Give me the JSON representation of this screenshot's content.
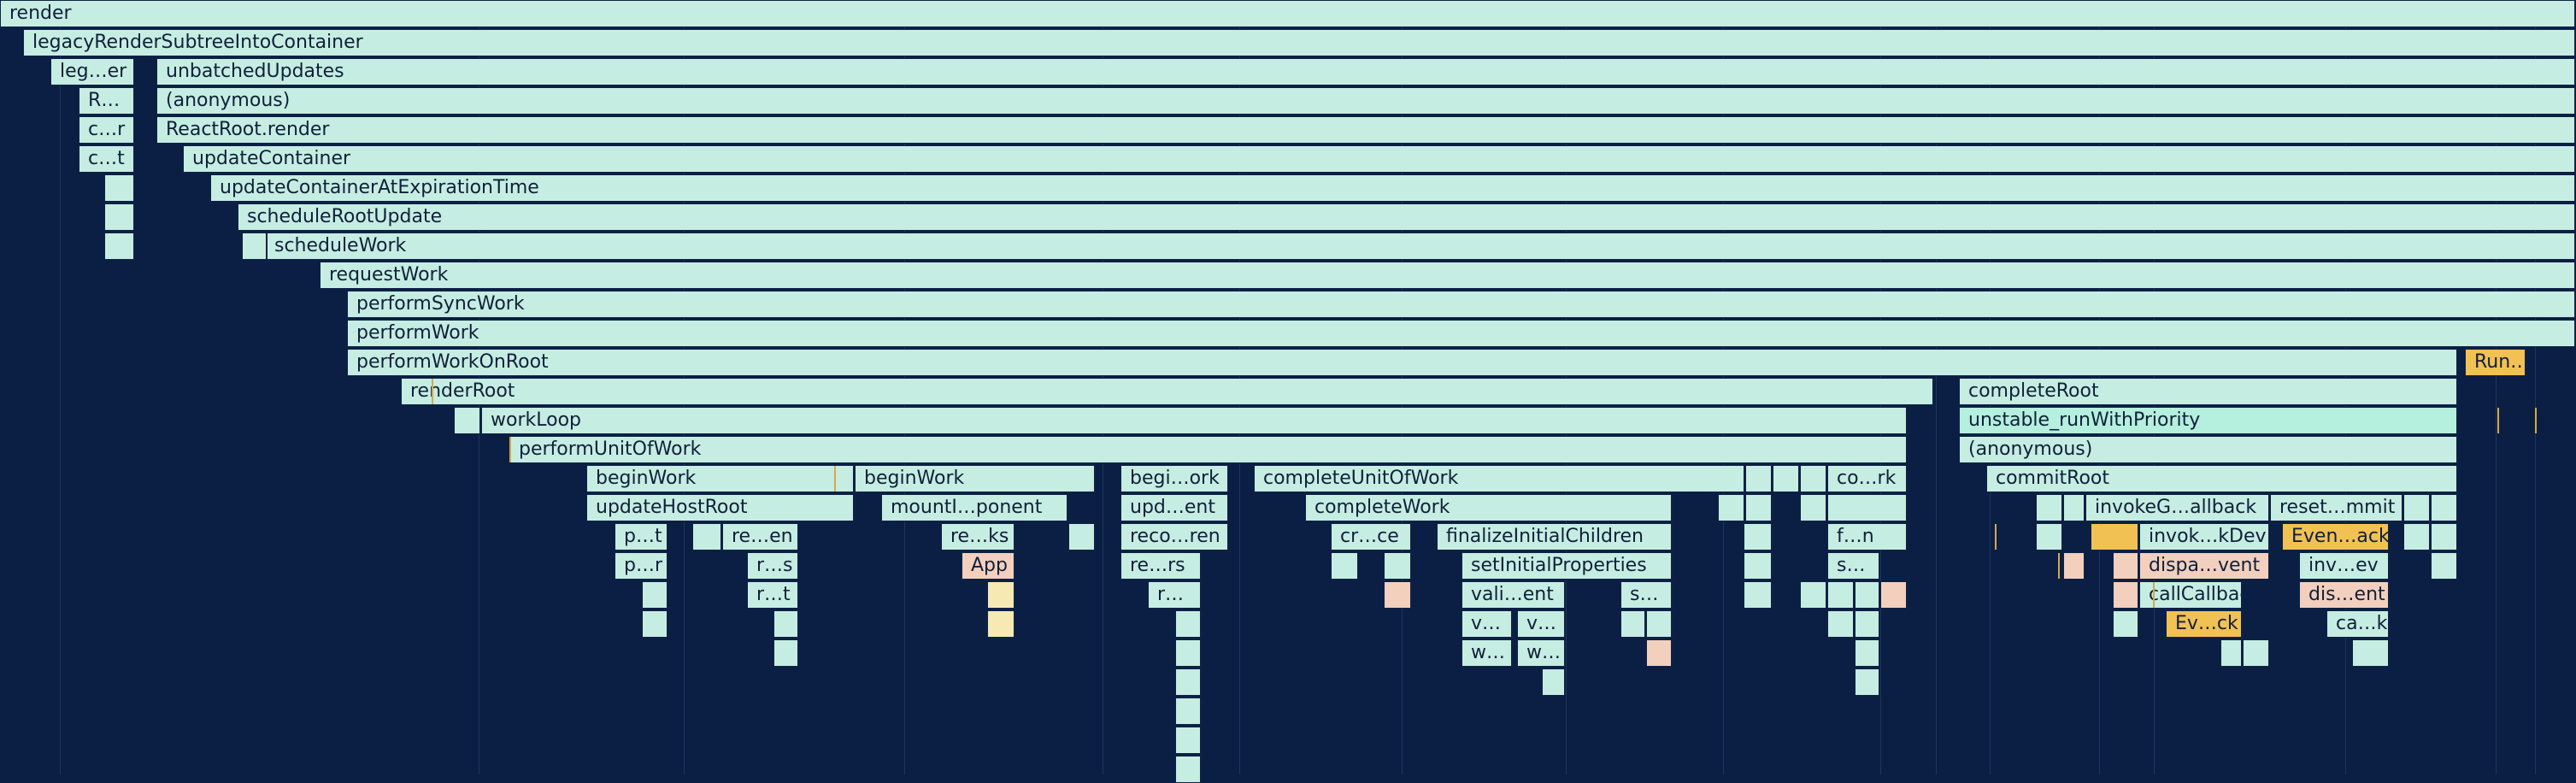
{
  "flame": {
    "frames": [
      {
        "label": "render",
        "color": "#c6ede2"
      },
      {
        "label": "legacyRenderSubtreeIntoContainer",
        "color": "#c6ede2"
      },
      {
        "label": "leg…er",
        "color": "#c6ede2"
      },
      {
        "label": "unbatchedUpdates",
        "color": "#c6ede2"
      },
      {
        "label": "R…",
        "color": "#c6ede2"
      },
      {
        "label": "(anonymous)",
        "color": "#c6ede2"
      },
      {
        "label": "c…r",
        "color": "#c6ede2"
      },
      {
        "label": "ReactRoot.render",
        "color": "#c6ede2"
      },
      {
        "label": "c…t",
        "color": "#c6ede2"
      },
      {
        "label": "updateContainer",
        "color": "#c6ede2"
      },
      {
        "label": "updateContainerAtExpirationTime",
        "color": "#c6ede2"
      },
      {
        "label": "scheduleRootUpdate",
        "color": "#c6ede2"
      },
      {
        "label": "scheduleWork",
        "color": "#c6ede2"
      },
      {
        "label": "requestWork",
        "color": "#c6ede2"
      },
      {
        "label": "performSyncWork",
        "color": "#c6ede2"
      },
      {
        "label": "performWork",
        "color": "#c6ede2"
      },
      {
        "label": "performWorkOnRoot",
        "color": "#c6ede2"
      },
      {
        "label": "Run…sks",
        "color": "#f2c154"
      },
      {
        "label": "renderRoot",
        "color": "#c6ede2"
      },
      {
        "label": "completeRoot",
        "color": "#c6ede2"
      },
      {
        "label": "workLoop",
        "color": "#c6ede2"
      },
      {
        "label": "unstable_runWithPriority",
        "color": "#b4f0dd"
      },
      {
        "label": "performUnitOfWork",
        "color": "#c6ede2"
      },
      {
        "label": "(anonymous)",
        "color": "#c6ede2"
      },
      {
        "label": "beginWork",
        "color": "#c6ede2"
      },
      {
        "label": "beginWork",
        "color": "#c6ede2"
      },
      {
        "label": "begi…ork",
        "color": "#c6ede2"
      },
      {
        "label": "completeUnitOfWork",
        "color": "#c6ede2"
      },
      {
        "label": "co…rk",
        "color": "#c6ede2"
      },
      {
        "label": "commitRoot",
        "color": "#c6ede2"
      },
      {
        "label": "updateHostRoot",
        "color": "#c6ede2"
      },
      {
        "label": "mountI…ponent",
        "color": "#c6ede2"
      },
      {
        "label": "upd…ent",
        "color": "#c6ede2"
      },
      {
        "label": "completeWork",
        "color": "#c6ede2"
      },
      {
        "label": "invokeG…allback",
        "color": "#c6ede2"
      },
      {
        "label": "reset…mmit",
        "color": "#c6ede2"
      },
      {
        "label": "p…t",
        "color": "#c6ede2"
      },
      {
        "label": "re…en",
        "color": "#c6ede2"
      },
      {
        "label": "re…ks",
        "color": "#c6ede2"
      },
      {
        "label": "reco…ren",
        "color": "#c6ede2"
      },
      {
        "label": "cr…ce",
        "color": "#c6ede2"
      },
      {
        "label": "finalizeInitialChildren",
        "color": "#c6ede2"
      },
      {
        "label": "f…n",
        "color": "#c6ede2"
      },
      {
        "label": "invok…kDev",
        "color": "#c6ede2"
      },
      {
        "label": "Even…ack",
        "color": "#f2c154"
      },
      {
        "label": "p…r",
        "color": "#c6ede2"
      },
      {
        "label": "r…s",
        "color": "#c6ede2"
      },
      {
        "label": "App",
        "color": "#f3cfbe"
      },
      {
        "label": "re…rs",
        "color": "#c6ede2"
      },
      {
        "label": "setInitialProperties",
        "color": "#c6ede2"
      },
      {
        "label": "s…",
        "color": "#c6ede2"
      },
      {
        "label": "dispa…vent",
        "color": "#f3cfbe"
      },
      {
        "label": "inv…ev",
        "color": "#c6ede2"
      },
      {
        "label": "r…t",
        "color": "#c6ede2"
      },
      {
        "label": "r…",
        "color": "#c6ede2"
      },
      {
        "label": "vali…ent",
        "color": "#c6ede2"
      },
      {
        "label": "s…",
        "color": "#c6ede2"
      },
      {
        "label": "callCallback",
        "color": "#c6ede2"
      },
      {
        "label": "dis…ent",
        "color": "#f3cfbe"
      },
      {
        "label": "v…",
        "color": "#c6ede2"
      },
      {
        "label": "v…",
        "color": "#c6ede2"
      },
      {
        "label": "Ev…ck",
        "color": "#f2c154"
      },
      {
        "label": "ca…k",
        "color": "#c6ede2"
      },
      {
        "label": "w…",
        "color": "#c6ede2"
      },
      {
        "label": "w…",
        "color": "#c6ede2"
      },
      {
        "label": "",
        "color": "#c6ede2"
      }
    ]
  }
}
